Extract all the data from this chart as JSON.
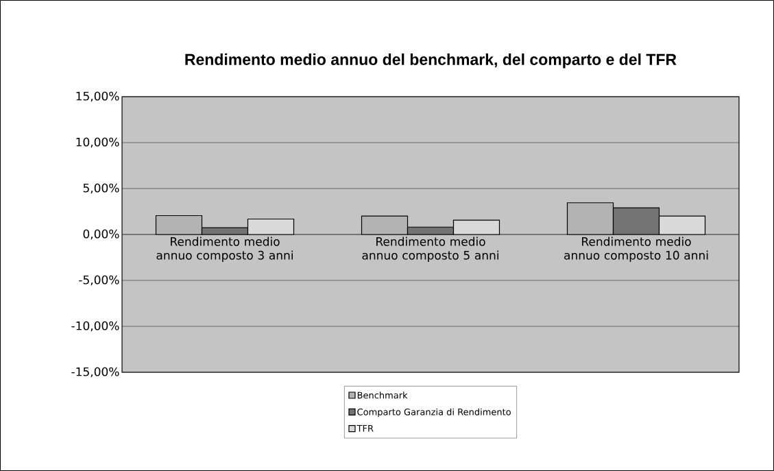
{
  "chart_data": {
    "type": "bar",
    "title": "Rendimento medio annuo del benchmark, del comparto e del TFR",
    "categories": [
      "Rendimento medio annuo composto 3 anni",
      "Rendimento medio annuo composto 5 anni",
      "Rendimento medio annuo composto 10 anni"
    ],
    "series": [
      {
        "name": "Benchmark",
        "color": "#b3b3b3",
        "values": [
          2.05,
          2.0,
          3.45
        ]
      },
      {
        "name": "Comparto Garanzia di Rendimento",
        "color": "#737373",
        "values": [
          0.73,
          0.8,
          2.9
        ]
      },
      {
        "name": "TFR",
        "color": "#d9d9d9",
        "values": [
          1.68,
          1.55,
          2.0
        ]
      }
    ],
    "ylim": [
      -15,
      15
    ],
    "yticks": [
      {
        "value": -15,
        "label": "-15,00%"
      },
      {
        "value": -10,
        "label": "-10,00%"
      },
      {
        "value": -5,
        "label": "-5,00%"
      },
      {
        "value": 0,
        "label": "0,00%"
      },
      {
        "value": 5,
        "label": "5,00%"
      },
      {
        "value": 10,
        "label": "10,00%"
      },
      {
        "value": 15,
        "label": "15,00%"
      }
    ],
    "grid": "y",
    "legend": "bottom"
  }
}
